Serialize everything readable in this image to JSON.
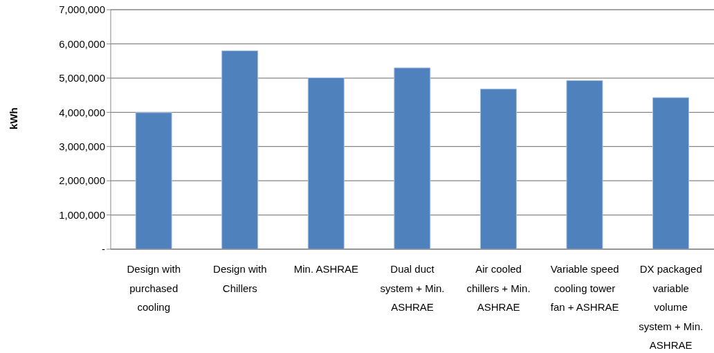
{
  "chart_data": {
    "type": "bar",
    "ylabel": "kWh",
    "categories": [
      "Design with purchased cooling",
      "Design with Chillers",
      "Min. ASHRAE",
      "Dual duct system + Min. ASHRAE",
      "Air cooled chillers + Min. ASHRAE",
      "Variable speed cooling tower fan + ASHRAE",
      "DX packaged variable volume system + Min. ASHRAE"
    ],
    "values": [
      3990000,
      5800000,
      5010000,
      5300000,
      4680000,
      4930000,
      4430000
    ],
    "color": "#4f81bd",
    "ylim": [
      0,
      7000000
    ],
    "yticks": [
      {
        "value": 0,
        "label": "-"
      },
      {
        "value": 1000000,
        "label": "1,000,000"
      },
      {
        "value": 2000000,
        "label": "2,000,000"
      },
      {
        "value": 3000000,
        "label": "3,000,000"
      },
      {
        "value": 4000000,
        "label": "4,000,000"
      },
      {
        "value": 5000000,
        "label": "5,000,000"
      },
      {
        "value": 6000000,
        "label": "6,000,000"
      },
      {
        "value": 7000000,
        "label": "7,000,000"
      }
    ],
    "grid": "y",
    "legend": false
  }
}
